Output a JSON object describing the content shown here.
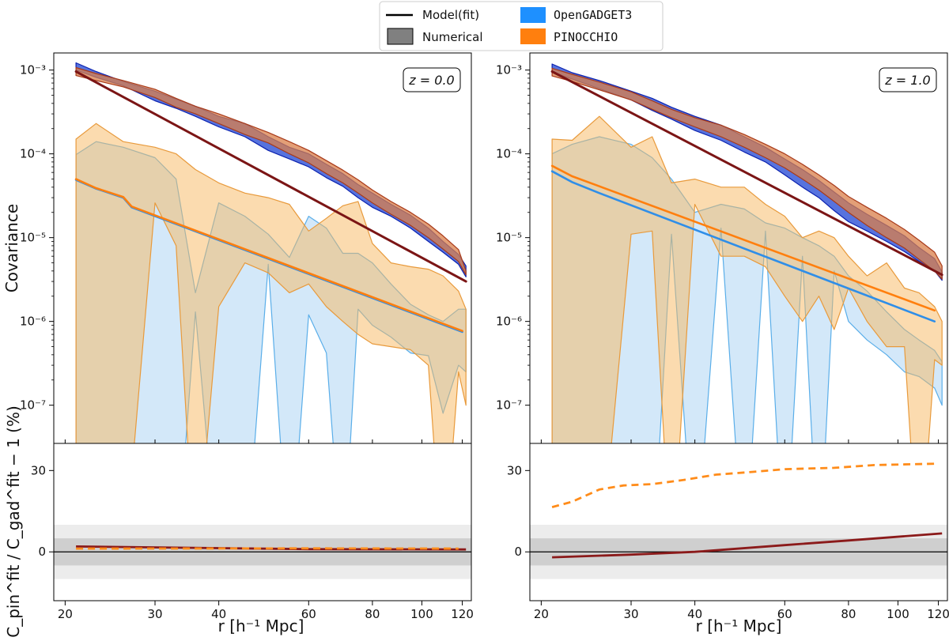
{
  "chart_data": {
    "type": "line",
    "legend": {
      "position": "top-center",
      "entries": [
        {
          "label": "Model(fit)",
          "kind": "line",
          "color": "#000000"
        },
        {
          "label": "OpenGADGET3",
          "kind": "patch",
          "color": "#1e90ff",
          "mono": true
        },
        {
          "label": "Numerical",
          "kind": "patch",
          "color": "#808080"
        },
        {
          "label": "PINOCCHIO",
          "kind": "patch",
          "color": "#ff7f0e",
          "mono": true
        }
      ]
    },
    "colors": {
      "gad_diag_fill": "#3a5bd8",
      "gad_diag_edge": "#0b22b0",
      "pin_diag_fill": "#d97f4a",
      "pin_diag_edge": "#a83a1a",
      "gad_off_fill": "#a8d2f4",
      "gad_off_edge": "#5aaee9",
      "pin_off_fill": "#f8b860",
      "pin_off_edge": "#e89a3c",
      "model_diag": "#7b1515",
      "model_off_gad": "#2f8ee8",
      "model_off_pin": "#ff7f0e",
      "ratio_solid": "#8b1a1a",
      "ratio_dashed": "#ff8c1a",
      "band_outer": "#ececec",
      "band_inner": "#cfcfcf"
    },
    "x_axis": {
      "label": "r [h⁻¹ Mpc]",
      "scale": "log",
      "range": [
        19,
        125
      ],
      "ticks": [
        20,
        30,
        40,
        60,
        80,
        100,
        120
      ],
      "tick_labels": [
        "20",
        "30",
        "40",
        "60",
        "80",
        "100",
        "120"
      ]
    },
    "y_axis_top": {
      "label": "Covariance",
      "scale": "log",
      "range": [
        3.5e-08,
        0.0016
      ],
      "ticks": [
        1e-07,
        1e-06,
        1e-05,
        0.0001,
        0.001
      ],
      "tick_labels": [
        "10⁻⁷",
        "10⁻⁶",
        "10⁻⁵",
        "10⁻⁴",
        "10⁻³"
      ]
    },
    "y_axis_bottom": {
      "label": "C_pin^fit / C_gad^fit − 1 (%)",
      "scale": "linear",
      "range": [
        -18,
        40
      ],
      "ticks": [
        0,
        30
      ],
      "tick_labels": [
        "0",
        "30"
      ],
      "bands": {
        "inner": [
          -5,
          5
        ],
        "outer": [
          -10,
          10
        ]
      }
    },
    "panels": [
      {
        "label": "z = 0.0",
        "r": [
          21,
          23,
          26,
          30,
          33,
          36,
          40,
          45,
          50,
          55,
          60,
          65,
          70,
          75,
          80,
          87,
          95,
          103,
          110,
          118,
          122
        ],
        "gad_diag_lo": [
          0.001,
          0.00082,
          0.00065,
          0.00043,
          0.00035,
          0.00028,
          0.00021,
          0.00016,
          0.00011,
          8.7e-05,
          7e-05,
          5.2e-05,
          4.1e-05,
          3e-05,
          2.3e-05,
          1.8e-05,
          1.3e-05,
          9e-06,
          6.7e-06,
          4.8e-06,
          3.4e-06
        ],
        "gad_diag_hi": [
          0.00122,
          0.00096,
          0.00073,
          0.00056,
          0.00045,
          0.00037,
          0.00028,
          0.00023,
          0.00016,
          0.00012,
          0.0001,
          7.5e-05,
          5.8e-05,
          4.3e-05,
          3.4e-05,
          2.5e-05,
          1.85e-05,
          1.3e-05,
          9e-06,
          6.3e-06,
          4.6e-06
        ],
        "pin_diag_lo": [
          0.00086,
          0.00075,
          0.00063,
          0.00047,
          0.00036,
          0.0003,
          0.00023,
          0.00017,
          0.000135,
          0.0001,
          7.8e-05,
          5.8e-05,
          4.5e-05,
          3.4e-05,
          2.6e-05,
          1.9e-05,
          1.4e-05,
          1e-05,
          7.3e-06,
          5.2e-06,
          3.6e-06
        ],
        "pin_diag_hi": [
          0.00107,
          0.00091,
          0.00075,
          0.00059,
          0.00046,
          0.00037,
          0.0003,
          0.00023,
          0.00018,
          0.00014,
          0.00011,
          8.3e-05,
          6.4e-05,
          4.9e-05,
          3.7e-05,
          2.7e-05,
          2e-05,
          1.45e-05,
          1.05e-05,
          7.2e-06,
          4e-06
        ],
        "gad_off_lo": [
          1e-09,
          1e-09,
          1e-09,
          1e-09,
          1e-09,
          1.3e-06,
          1e-09,
          1e-09,
          4.8e-06,
          1e-09,
          1.2e-06,
          4.2e-07,
          1e-09,
          1.4e-06,
          9e-07,
          6.5e-07,
          4.2e-07,
          3.9e-07,
          8e-08,
          3e-07,
          2.5e-07
        ],
        "gad_off_hi": [
          9.8e-05,
          0.00014,
          0.00012,
          9e-05,
          5e-05,
          2.2e-06,
          2.6e-05,
          1.8e-05,
          1.1e-05,
          5.8e-06,
          1.8e-05,
          1.3e-05,
          6.5e-06,
          6.5e-06,
          5e-06,
          2.8e-06,
          1.6e-06,
          1.2e-06,
          1e-06,
          1.4e-06,
          1.4e-06
        ],
        "pin_off_lo": [
          1e-09,
          1e-09,
          1e-09,
          2.6e-05,
          8e-06,
          1e-09,
          1.5e-06,
          5e-06,
          3.8e-06,
          2.2e-06,
          2.8e-06,
          1.5e-06,
          1e-06,
          7e-07,
          5.4e-07,
          5e-07,
          4.6e-07,
          3e-07,
          1e-09,
          2.5e-07,
          1e-07
        ],
        "pin_off_hi": [
          0.00015,
          0.00023,
          0.00014,
          0.00012,
          0.0001,
          6.5e-05,
          4.5e-05,
          3.4e-05,
          3e-05,
          2.5e-05,
          1.2e-05,
          1.7e-05,
          2.4e-05,
          2.7e-05,
          8.5e-06,
          5e-06,
          4.5e-06,
          4.2e-06,
          3.5e-06,
          2.3e-06,
          1.4e-06
        ],
        "model_diag": [
          0.00096,
          3e-06
        ],
        "model_off_gad": [
          [
            21,
            4.9e-05
          ],
          [
            23,
            3.85e-05
          ],
          [
            26,
            3e-05
          ],
          [
            27,
            2.3e-05
          ],
          [
            120,
            7.5e-07
          ]
        ],
        "model_off_pin": [
          [
            21,
            5e-05
          ],
          [
            23,
            3.9e-05
          ],
          [
            26,
            3.05e-05
          ],
          [
            27,
            2.35e-05
          ],
          [
            120,
            7.7e-07
          ]
        ],
        "ratio_solid": [
          [
            21,
            2.0
          ],
          [
            60,
            1.0
          ],
          [
            122,
            0.9
          ]
        ],
        "ratio_dashed": [
          [
            21,
            1.2
          ],
          [
            60,
            1.3
          ],
          [
            118,
            1.2
          ]
        ]
      },
      {
        "label": "z = 1.0",
        "r": [
          21,
          23,
          26,
          30,
          33,
          36,
          40,
          45,
          50,
          55,
          60,
          65,
          70,
          75,
          80,
          87,
          95,
          103,
          110,
          118,
          122
        ],
        "gad_diag_lo": [
          0.00095,
          0.00078,
          0.0006,
          0.00044,
          0.00033,
          0.00026,
          0.00019,
          0.000145,
          0.000105,
          8e-05,
          5.6e-05,
          4e-05,
          3e-05,
          2.1e-05,
          1.55e-05,
          1.2e-05,
          9e-06,
          6.8e-06,
          5.2e-06,
          4e-06,
          3.1e-06
        ],
        "gad_diag_hi": [
          0.00118,
          0.00093,
          0.00075,
          0.00056,
          0.00046,
          0.00036,
          0.00028,
          0.00022,
          0.00016,
          0.00012,
          8.7e-05,
          6.5e-05,
          4.8e-05,
          3.5e-05,
          2.6e-05,
          1.9e-05,
          1.4e-05,
          1.05e-05,
          7.6e-06,
          5.6e-06,
          3.9e-06
        ],
        "pin_diag_lo": [
          0.00085,
          0.00073,
          0.00058,
          0.00044,
          0.00034,
          0.00027,
          0.00021,
          0.00016,
          0.00012,
          9e-05,
          6.8e-05,
          5e-05,
          3.7e-05,
          2.7e-05,
          2e-05,
          1.4e-05,
          1e-05,
          7.5e-06,
          5.5e-06,
          4e-06,
          3.2e-06
        ],
        "pin_diag_hi": [
          0.00105,
          0.00089,
          0.00072,
          0.00055,
          0.00043,
          0.00034,
          0.00027,
          0.00022,
          0.00017,
          0.00013,
          0.0001,
          7.5e-05,
          5.6e-05,
          4.2e-05,
          3.1e-05,
          2.3e-05,
          1.7e-05,
          1.25e-05,
          9.3e-06,
          6.7e-06,
          4.6e-06
        ],
        "gad_off_lo": [
          1e-09,
          1e-09,
          1e-09,
          1e-09,
          1e-09,
          1.1e-05,
          1e-09,
          1.3e-05,
          1e-09,
          1.2e-05,
          1e-09,
          6e-06,
          1e-09,
          4e-06,
          1e-06,
          6e-07,
          4e-07,
          2.5e-07,
          2.2e-07,
          1.6e-07,
          1e-07
        ],
        "gad_off_hi": [
          0.0001,
          0.00013,
          0.00016,
          0.00013,
          9e-05,
          5e-05,
          2e-05,
          2.5e-05,
          2.2e-05,
          1.5e-05,
          1.3e-05,
          1e-05,
          8e-06,
          6e-06,
          3.5e-06,
          2.3e-06,
          1.3e-06,
          8e-07,
          6e-07,
          4.5e-07,
          3.3e-07
        ],
        "pin_off_lo": [
          1e-09,
          1e-09,
          1e-09,
          1.1e-05,
          1.2e-05,
          1e-09,
          2.5e-05,
          6e-06,
          6e-06,
          4.5e-06,
          2e-06,
          1e-06,
          2e-06,
          8e-07,
          2.5e-06,
          1e-06,
          5e-07,
          5e-07,
          1e-09,
          3.5e-07,
          3e-07
        ],
        "pin_off_hi": [
          0.00015,
          0.000145,
          0.00028,
          0.00012,
          0.00016,
          4.5e-05,
          5e-05,
          4e-05,
          4e-05,
          2.5e-05,
          1.8e-05,
          1e-05,
          1.2e-05,
          1e-05,
          6e-06,
          3.5e-06,
          5e-06,
          2.5e-06,
          2.2e-06,
          1.5e-06,
          1e-06
        ],
        "model_diag": [
          0.00096,
          3.6e-06
        ],
        "model_off_gad": [
          [
            21,
            6.2e-05
          ],
          [
            23,
            4.6e-05
          ],
          [
            26,
            3.4e-05
          ],
          [
            118,
            1e-06
          ]
        ],
        "model_off_pin": [
          [
            21,
            7.2e-05
          ],
          [
            23,
            5.4e-05
          ],
          [
            26,
            4.1e-05
          ],
          [
            118,
            1.35e-06
          ]
        ],
        "ratio_solid": [
          [
            21,
            -2.0
          ],
          [
            30,
            -1.0
          ],
          [
            40,
            0.0
          ],
          [
            60,
            2.5
          ],
          [
            80,
            4.2
          ],
          [
            122,
            6.8
          ]
        ],
        "ratio_dashed": [
          [
            21,
            16.5
          ],
          [
            23,
            18.5
          ],
          [
            26,
            23.0
          ],
          [
            29,
            24.5
          ],
          [
            33,
            25.0
          ],
          [
            38,
            26.5
          ],
          [
            44,
            28.5
          ],
          [
            52,
            29.5
          ],
          [
            60,
            30.5
          ],
          [
            75,
            31.0
          ],
          [
            90,
            32.0
          ],
          [
            118,
            32.5
          ]
        ]
      }
    ]
  }
}
